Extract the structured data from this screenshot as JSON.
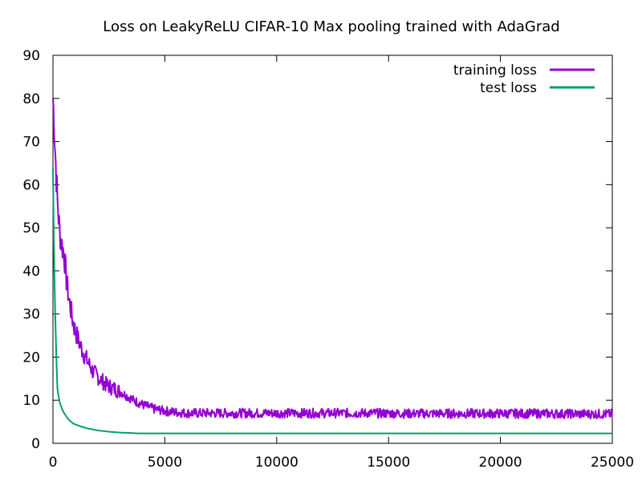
{
  "chart_data": {
    "type": "line",
    "title": "Loss on LeakyReLU CIFAR-10 Max pooling trained with AdaGrad",
    "xlabel": "",
    "ylabel": "",
    "xlim": [
      0,
      25000
    ],
    "ylim": [
      0,
      90
    ],
    "xticks": [
      0,
      5000,
      10000,
      15000,
      20000,
      25000
    ],
    "yticks": [
      0,
      10,
      20,
      30,
      40,
      50,
      60,
      70,
      80,
      90
    ],
    "grid": false,
    "legend_position": "top-right",
    "series": [
      {
        "name": "training loss",
        "color": "#9400d3",
        "x": [
          0,
          50,
          100,
          150,
          200,
          300,
          400,
          500,
          600,
          700,
          800,
          900,
          1000,
          1200,
          1400,
          1600,
          1800,
          2000,
          2200,
          2400,
          2600,
          2800,
          3000,
          3300,
          3600,
          4000,
          4500,
          5000,
          5500,
          6000,
          7000,
          8000,
          9000,
          10000,
          12000,
          14000,
          16000,
          18000,
          20000,
          22000,
          24000,
          25000
        ],
        "y": [
          80,
          75,
          68,
          62,
          56,
          49,
          46,
          44,
          38,
          34,
          31,
          28,
          26,
          23,
          20.5,
          18.5,
          16.5,
          15.5,
          14.5,
          13.5,
          13,
          12.5,
          12,
          11,
          10,
          9,
          8,
          7.5,
          7.2,
          7,
          7,
          7,
          7,
          7,
          7,
          7,
          6.9,
          6.9,
          6.9,
          6.9,
          6.8,
          6.8
        ]
      },
      {
        "name": "test loss",
        "color": "#009e73",
        "x": [
          0,
          30,
          60,
          100,
          150,
          200,
          300,
          400,
          500,
          700,
          900,
          1200,
          1500,
          2000,
          2500,
          3000,
          3500,
          3800,
          5000,
          10000,
          15000,
          20000,
          25000
        ],
        "y": [
          64,
          52,
          40,
          30,
          20,
          12.5,
          9.5,
          8,
          7,
          5.5,
          4.6,
          4,
          3.5,
          3,
          2.7,
          2.5,
          2.4,
          2.3,
          2.3,
          2.3,
          2.3,
          2.3,
          2.3
        ]
      }
    ]
  }
}
